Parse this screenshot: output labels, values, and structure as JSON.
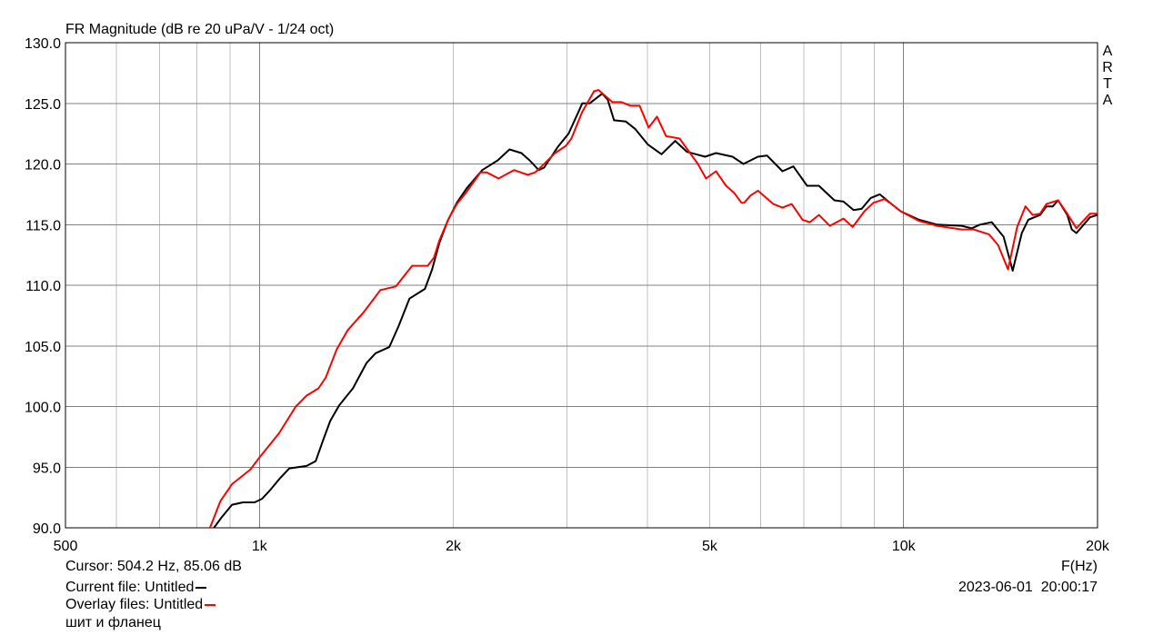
{
  "chart_data": {
    "type": "line",
    "title": "FR Magnitude (dB re 20 uPa/V - 1/24 oct)",
    "xlabel": "F(Hz)",
    "ylabel": "",
    "xscale": "log",
    "xlim": [
      500,
      20000
    ],
    "ylim": [
      90,
      130
    ],
    "grid": true,
    "x_ticks": [
      500,
      1000,
      2000,
      5000,
      10000,
      20000
    ],
    "x_tick_labels": [
      "500",
      "1k",
      "2k",
      "5k",
      "10k",
      "20k"
    ],
    "y_ticks": [
      90,
      95,
      100,
      105,
      110,
      115,
      120,
      125,
      130
    ],
    "y_tick_labels": [
      "90.0",
      "95.0",
      "100.0",
      "105.0",
      "110.0",
      "115.0",
      "120.0",
      "125.0",
      "130.0"
    ],
    "series": [
      {
        "color": "#000000",
        "points": [
          [
            850,
            90.0
          ],
          [
            872,
            90.8
          ],
          [
            907,
            91.9
          ],
          [
            943,
            92.1
          ],
          [
            983,
            92.1
          ],
          [
            1010,
            92.4
          ],
          [
            1039,
            93.1
          ],
          [
            1073,
            94.0
          ],
          [
            1113,
            94.9
          ],
          [
            1184,
            95.1
          ],
          [
            1223,
            95.5
          ],
          [
            1255,
            97.2
          ],
          [
            1288,
            98.8
          ],
          [
            1330,
            100.1
          ],
          [
            1397,
            101.5
          ],
          [
            1467,
            103.6
          ],
          [
            1515,
            104.4
          ],
          [
            1591,
            104.9
          ],
          [
            1644,
            106.6
          ],
          [
            1710,
            108.9
          ],
          [
            1807,
            109.7
          ],
          [
            1854,
            111.3
          ],
          [
            1903,
            113.5
          ],
          [
            1960,
            115.3
          ],
          [
            2025,
            116.8
          ],
          [
            2098,
            118.0
          ],
          [
            2218,
            119.5
          ],
          [
            2344,
            120.3
          ],
          [
            2445,
            121.2
          ],
          [
            2551,
            120.9
          ],
          [
            2627,
            120.3
          ],
          [
            2714,
            119.5
          ],
          [
            2767,
            119.7
          ],
          [
            2905,
            121.4
          ],
          [
            3020,
            122.5
          ],
          [
            3141,
            124.5
          ],
          [
            3171,
            125.0
          ],
          [
            3255,
            125.0
          ],
          [
            3405,
            125.8
          ],
          [
            3473,
            125.3
          ],
          [
            3553,
            123.6
          ],
          [
            3706,
            123.5
          ],
          [
            3829,
            122.9
          ],
          [
            4009,
            121.6
          ],
          [
            4209,
            120.8
          ],
          [
            4419,
            121.9
          ],
          [
            4610,
            121.0
          ],
          [
            4919,
            120.6
          ],
          [
            5114,
            120.9
          ],
          [
            5426,
            120.6
          ],
          [
            5641,
            120.0
          ],
          [
            5941,
            120.6
          ],
          [
            6137,
            120.7
          ],
          [
            6486,
            119.4
          ],
          [
            6744,
            119.8
          ],
          [
            7082,
            118.2
          ],
          [
            7388,
            118.2
          ],
          [
            7808,
            117.0
          ],
          [
            8065,
            116.9
          ],
          [
            8361,
            116.2
          ],
          [
            8609,
            116.3
          ],
          [
            8891,
            117.2
          ],
          [
            9183,
            117.5
          ],
          [
            9580,
            116.7
          ],
          [
            9898,
            116.1
          ],
          [
            10567,
            115.4
          ],
          [
            11274,
            115.0
          ],
          [
            12312,
            114.9
          ],
          [
            12758,
            114.7
          ],
          [
            13135,
            115.0
          ],
          [
            13705,
            115.2
          ],
          [
            14296,
            114.0
          ],
          [
            14767,
            111.2
          ],
          [
            15257,
            114.3
          ],
          [
            15610,
            115.4
          ],
          [
            16285,
            115.8
          ],
          [
            16662,
            116.5
          ],
          [
            17047,
            116.5
          ],
          [
            17377,
            117.0
          ],
          [
            17948,
            115.8
          ],
          [
            18245,
            114.6
          ],
          [
            18546,
            114.3
          ],
          [
            19470,
            115.6
          ],
          [
            20000,
            115.8
          ]
        ]
      },
      {
        "color": "#ff0000",
        "points": [
          [
            838,
            90.0
          ],
          [
            870,
            92.2
          ],
          [
            907,
            93.6
          ],
          [
            968,
            94.8
          ],
          [
            1000,
            95.8
          ],
          [
            1073,
            97.8
          ],
          [
            1139,
            100.0
          ],
          [
            1184,
            100.9
          ],
          [
            1235,
            101.5
          ],
          [
            1268,
            102.4
          ],
          [
            1318,
            104.7
          ],
          [
            1371,
            106.3
          ],
          [
            1453,
            107.8
          ],
          [
            1541,
            109.6
          ],
          [
            1629,
            109.9
          ],
          [
            1726,
            111.6
          ],
          [
            1825,
            111.6
          ],
          [
            1867,
            112.3
          ],
          [
            1903,
            113.7
          ],
          [
            1967,
            115.5
          ],
          [
            2025,
            116.7
          ],
          [
            2091,
            117.6
          ],
          [
            2204,
            119.3
          ],
          [
            2254,
            119.3
          ],
          [
            2351,
            118.8
          ],
          [
            2485,
            119.5
          ],
          [
            2610,
            119.1
          ],
          [
            2678,
            119.3
          ],
          [
            2767,
            120.0
          ],
          [
            2877,
            120.9
          ],
          [
            2991,
            121.5
          ],
          [
            3050,
            122.1
          ],
          [
            3171,
            124.3
          ],
          [
            3307,
            126.0
          ],
          [
            3362,
            126.1
          ],
          [
            3531,
            125.1
          ],
          [
            3647,
            125.1
          ],
          [
            3768,
            124.8
          ],
          [
            3892,
            124.8
          ],
          [
            4021,
            123.0
          ],
          [
            4141,
            123.9
          ],
          [
            4278,
            122.3
          ],
          [
            4491,
            122.1
          ],
          [
            4793,
            120.0
          ],
          [
            4936,
            118.8
          ],
          [
            5114,
            119.4
          ],
          [
            5302,
            118.2
          ],
          [
            5460,
            117.6
          ],
          [
            5602,
            116.8
          ],
          [
            5658,
            116.8
          ],
          [
            5787,
            117.4
          ],
          [
            5941,
            117.8
          ],
          [
            6278,
            116.7
          ],
          [
            6486,
            116.4
          ],
          [
            6701,
            116.7
          ],
          [
            6969,
            115.4
          ],
          [
            7152,
            115.2
          ],
          [
            7388,
            115.8
          ],
          [
            7680,
            114.9
          ],
          [
            8065,
            115.5
          ],
          [
            8334,
            114.8
          ],
          [
            8693,
            116.1
          ],
          [
            8979,
            116.8
          ],
          [
            9337,
            117.1
          ],
          [
            9580,
            116.7
          ],
          [
            9898,
            116.1
          ],
          [
            10567,
            115.3
          ],
          [
            11274,
            114.9
          ],
          [
            12312,
            114.6
          ],
          [
            12840,
            114.6
          ],
          [
            13567,
            114.2
          ],
          [
            14020,
            113.3
          ],
          [
            14528,
            111.3
          ],
          [
            15008,
            114.8
          ],
          [
            15456,
            116.5
          ],
          [
            15861,
            115.8
          ],
          [
            16285,
            115.9
          ],
          [
            16662,
            116.7
          ],
          [
            17377,
            117.0
          ],
          [
            17948,
            115.9
          ],
          [
            18546,
            114.7
          ],
          [
            19470,
            115.9
          ],
          [
            20000,
            115.9
          ]
        ]
      }
    ]
  },
  "brand": "ARTA",
  "brand_letters": [
    "A",
    "R",
    "T",
    "A"
  ],
  "footer": {
    "cursor": "Cursor: 504.2 Hz, 85.06 dB",
    "current_file": "Current file: Untitled",
    "overlay_files": "Overlay files: Untitled",
    "note": "шит и фланец",
    "datetime": "2023-06-01  20:00:17"
  },
  "colors": {
    "grid_major": "#808080",
    "grid_minor": "#c0c0c0",
    "current": "#000000",
    "overlay": "#ff0000"
  }
}
